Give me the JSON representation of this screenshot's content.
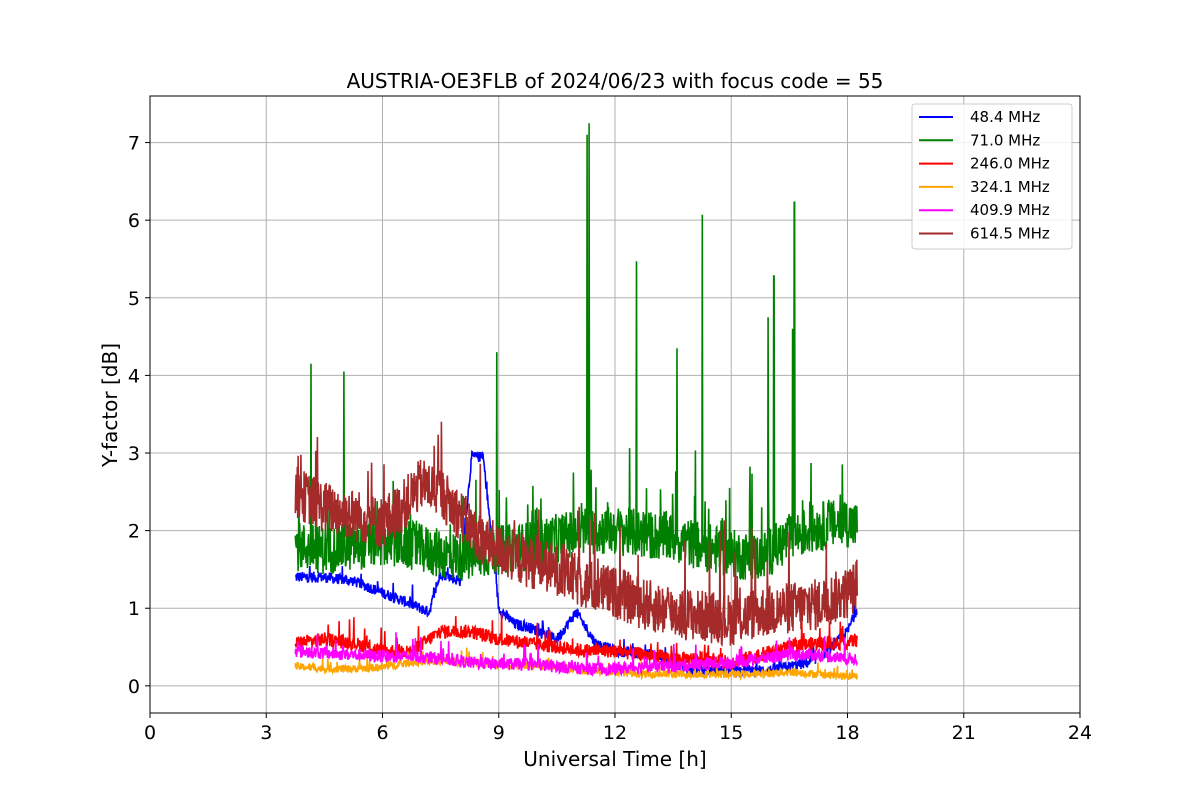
{
  "chart_data": {
    "type": "line",
    "title": "AUSTRIA-OE3FLB of 2024/06/23 with focus code = 55",
    "xlabel": "Universal Time [h]",
    "ylabel": "Y-factor [dB]",
    "xlim": [
      0,
      24
    ],
    "ylim": [
      -0.35,
      7.6
    ],
    "xticks": [
      0,
      3,
      6,
      9,
      12,
      15,
      18,
      21,
      24
    ],
    "yticks": [
      0,
      1,
      2,
      3,
      4,
      5,
      6,
      7
    ],
    "xtick_labels": [
      "0",
      "3",
      "6",
      "9",
      "12",
      "15",
      "18",
      "21",
      "24"
    ],
    "ytick_labels": [
      "0",
      "1",
      "2",
      "3",
      "4",
      "5",
      "6",
      "7"
    ],
    "grid": true,
    "legend_position": "top-right",
    "x_range_of_data": [
      3.75,
      18.25
    ],
    "series": [
      {
        "name": "48.4 MHz",
        "color": "#0000ff",
        "x": [
          3.75,
          4.5,
          5.25,
          6.0,
          6.75,
          7.2,
          7.5,
          8.0,
          8.3,
          8.6,
          9.0,
          9.4,
          9.8,
          10.5,
          11.0,
          11.5,
          12.0,
          13.0,
          14.0,
          15.0,
          16.0,
          17.0,
          17.5,
          18.0,
          18.25
        ],
        "values": [
          1.4,
          1.4,
          1.35,
          1.2,
          1.05,
          0.95,
          1.45,
          1.35,
          2.95,
          2.95,
          1.0,
          0.8,
          0.75,
          0.6,
          0.95,
          0.55,
          0.45,
          0.4,
          0.2,
          0.2,
          0.2,
          0.3,
          0.45,
          0.7,
          1.0
        ]
      },
      {
        "name": "71.0 MHz",
        "color": "#008000",
        "x": [
          3.75,
          4.5,
          5.25,
          6.0,
          6.75,
          7.5,
          8.25,
          9.0,
          9.75,
          10.5,
          11.25,
          12.0,
          12.75,
          13.5,
          14.25,
          15.0,
          15.75,
          16.5,
          17.25,
          18.0,
          18.25
        ],
        "values": [
          1.8,
          1.75,
          1.8,
          1.85,
          1.8,
          1.7,
          1.65,
          1.75,
          1.8,
          1.9,
          2.0,
          2.0,
          1.95,
          1.9,
          1.8,
          1.7,
          1.65,
          1.9,
          2.05,
          2.1,
          2.05
        ],
        "spikes": [
          [
            4.15,
            4.15
          ],
          [
            5.0,
            4.05
          ],
          [
            8.95,
            4.3
          ],
          [
            11.28,
            7.1
          ],
          [
            11.33,
            7.25
          ],
          [
            12.55,
            5.47
          ],
          [
            13.6,
            4.35
          ],
          [
            14.25,
            6.07
          ],
          [
            15.95,
            4.75
          ],
          [
            16.1,
            5.28
          ],
          [
            16.58,
            4.6
          ],
          [
            16.63,
            6.23
          ]
        ]
      },
      {
        "name": "246.0 MHz",
        "color": "#ff0000",
        "x": [
          3.75,
          4.5,
          5.25,
          6.0,
          6.75,
          7.5,
          8.25,
          9.0,
          9.75,
          10.5,
          11.25,
          12.0,
          12.75,
          13.5,
          14.25,
          15.0,
          15.75,
          16.5,
          17.25,
          18.0,
          18.25
        ],
        "values": [
          0.55,
          0.6,
          0.55,
          0.45,
          0.45,
          0.7,
          0.7,
          0.6,
          0.55,
          0.5,
          0.45,
          0.45,
          0.4,
          0.35,
          0.35,
          0.3,
          0.4,
          0.5,
          0.55,
          0.55,
          0.6
        ]
      },
      {
        "name": "324.1 MHz",
        "color": "#ffa500",
        "x": [
          3.75,
          4.5,
          5.25,
          6.0,
          6.75,
          7.5,
          8.25,
          9.0,
          9.75,
          10.5,
          11.25,
          12.0,
          12.75,
          13.5,
          14.25,
          15.0,
          15.75,
          16.5,
          17.25,
          18.0,
          18.25
        ],
        "values": [
          0.25,
          0.22,
          0.22,
          0.24,
          0.3,
          0.32,
          0.3,
          0.28,
          0.26,
          0.25,
          0.2,
          0.18,
          0.15,
          0.15,
          0.15,
          0.15,
          0.15,
          0.18,
          0.15,
          0.12,
          0.12
        ]
      },
      {
        "name": "409.9 MHz",
        "color": "#ff00ff",
        "x": [
          3.75,
          4.5,
          5.25,
          6.0,
          6.75,
          7.5,
          8.25,
          9.0,
          9.75,
          10.5,
          11.25,
          12.0,
          12.75,
          13.5,
          14.25,
          15.0,
          15.75,
          16.5,
          17.25,
          18.0,
          18.25
        ],
        "values": [
          0.45,
          0.42,
          0.4,
          0.38,
          0.38,
          0.35,
          0.3,
          0.28,
          0.28,
          0.25,
          0.22,
          0.22,
          0.25,
          0.25,
          0.28,
          0.3,
          0.35,
          0.4,
          0.4,
          0.35,
          0.35
        ]
      },
      {
        "name": "614.5 MHz",
        "color": "#a52a2a",
        "x": [
          3.75,
          4.5,
          5.25,
          6.0,
          6.5,
          7.0,
          7.5,
          8.0,
          8.5,
          9.0,
          9.75,
          10.5,
          11.25,
          12.0,
          12.75,
          13.5,
          14.25,
          15.0,
          15.75,
          16.5,
          17.25,
          18.0,
          18.25
        ],
        "values": [
          2.5,
          2.3,
          2.2,
          2.1,
          2.3,
          2.6,
          2.5,
          2.2,
          1.9,
          1.75,
          1.6,
          1.5,
          1.3,
          1.2,
          1.05,
          0.95,
          0.9,
          0.85,
          0.95,
          1.0,
          1.05,
          1.2,
          1.3
        ]
      }
    ]
  }
}
